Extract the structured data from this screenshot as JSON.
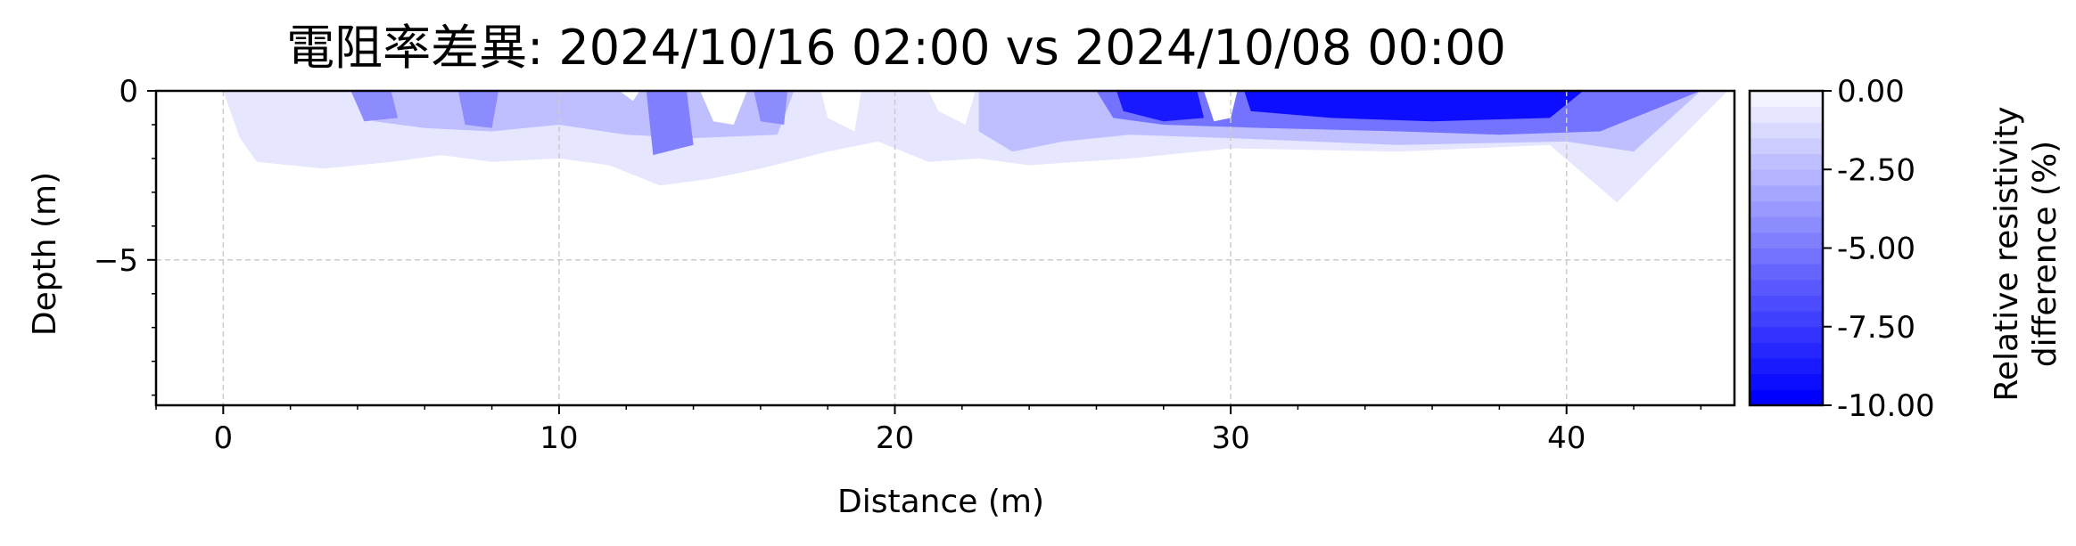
{
  "chart_data": {
    "type": "heatmap",
    "title": "電阻率差異: 2024/10/16 02:00 vs 2024/10/08 00:00",
    "xlabel": "Distance (m)",
    "ylabel": "Depth (m)",
    "xlim": [
      -2,
      45
    ],
    "ylim": [
      -9.3,
      0
    ],
    "x_ticks": [
      {
        "value": 0,
        "label": "0"
      },
      {
        "value": 10,
        "label": "10"
      },
      {
        "value": 20,
        "label": "20"
      },
      {
        "value": 30,
        "label": "30"
      },
      {
        "value": 40,
        "label": "40"
      }
    ],
    "y_ticks": [
      {
        "value": 0,
        "label": "0"
      },
      {
        "value": -5,
        "label": "−5"
      }
    ],
    "grid": true,
    "colorbar": {
      "label_line1": "Relative resistivity",
      "label_line2": "difference (%)",
      "range": [
        -10,
        0
      ],
      "levels": 20,
      "min_color": "#0000ff",
      "max_color": "#ffffff",
      "ticks": [
        {
          "value": 0,
          "label": "0.00"
        },
        {
          "value": -2.5,
          "label": "-2.50"
        },
        {
          "value": -5,
          "label": "-5.00"
        },
        {
          "value": -7.5,
          "label": "-7.50"
        },
        {
          "value": -10,
          "label": "-10.00"
        }
      ]
    },
    "regions": [
      {
        "name": "shallow-envelope",
        "value": -1.0,
        "points": [
          [
            0,
            0
          ],
          [
            44.8,
            0
          ],
          [
            41.5,
            -3.3
          ],
          [
            39.5,
            -1.6
          ],
          [
            35,
            -1.8
          ],
          [
            30,
            -1.7
          ],
          [
            27,
            -2.0
          ],
          [
            24,
            -2.2
          ],
          [
            22.5,
            -2.0
          ],
          [
            21,
            -2.1
          ],
          [
            19.5,
            -1.5
          ],
          [
            18,
            -1.8
          ],
          [
            16,
            -2.3
          ],
          [
            14.5,
            -2.6
          ],
          [
            13,
            -2.8
          ],
          [
            11.5,
            -2.2
          ],
          [
            10,
            -2.0
          ],
          [
            8,
            -2.1
          ],
          [
            6.5,
            -1.9
          ],
          [
            5,
            -2.1
          ],
          [
            3,
            -2.3
          ],
          [
            1,
            -2.1
          ],
          [
            0.5,
            -1.4
          ]
        ]
      },
      {
        "name": "band-2-5",
        "value": -2.5,
        "points": [
          [
            4,
            0
          ],
          [
            17,
            0
          ],
          [
            16.5,
            -1.3
          ],
          [
            14,
            -1.4
          ],
          [
            12,
            -1.3
          ],
          [
            10,
            -1.0
          ],
          [
            8,
            -1.2
          ],
          [
            6,
            -1.1
          ],
          [
            4.5,
            -0.9
          ]
        ]
      },
      {
        "name": "band-22-44",
        "value": -2.5,
        "points": [
          [
            22.5,
            0
          ],
          [
            44,
            0
          ],
          [
            42,
            -1.8
          ],
          [
            40,
            -1.5
          ],
          [
            35,
            -1.6
          ],
          [
            30,
            -1.4
          ],
          [
            27,
            -1.3
          ],
          [
            25,
            -1.5
          ],
          [
            23.5,
            -1.8
          ],
          [
            22.5,
            -1.2
          ]
        ]
      },
      {
        "name": "spot-4",
        "value": -4.5,
        "points": [
          [
            3.8,
            0
          ],
          [
            5.0,
            0
          ],
          [
            5.2,
            -0.8
          ],
          [
            4.2,
            -0.9
          ]
        ]
      },
      {
        "name": "spot-7",
        "value": -4.5,
        "points": [
          [
            7.0,
            0
          ],
          [
            8.2,
            0
          ],
          [
            8.0,
            -1.1
          ],
          [
            7.2,
            -1.0
          ]
        ]
      },
      {
        "name": "spot-13",
        "value": -5.0,
        "points": [
          [
            12.6,
            0
          ],
          [
            13.8,
            0
          ],
          [
            14.0,
            -1.6
          ],
          [
            12.8,
            -1.9
          ]
        ]
      },
      {
        "name": "spot-16",
        "value": -4.5,
        "points": [
          [
            15.8,
            0
          ],
          [
            16.8,
            0
          ],
          [
            16.7,
            -1.0
          ],
          [
            16.0,
            -0.9
          ]
        ]
      },
      {
        "name": "band-26-44",
        "value": -5.5,
        "points": [
          [
            26,
            0
          ],
          [
            44,
            0
          ],
          [
            41,
            -1.2
          ],
          [
            38,
            -1.3
          ],
          [
            35,
            -1.2
          ],
          [
            31,
            -1.1
          ],
          [
            28,
            -1.0
          ],
          [
            26.5,
            -0.8
          ]
        ]
      },
      {
        "name": "core-27-29",
        "value": -9.0,
        "points": [
          [
            26.6,
            0
          ],
          [
            29.0,
            0
          ],
          [
            29.2,
            -0.8
          ],
          [
            28.0,
            -0.9
          ],
          [
            26.8,
            -0.6
          ]
        ]
      },
      {
        "name": "core-30-40",
        "value": -9.5,
        "points": [
          [
            30.4,
            0
          ],
          [
            40.5,
            0
          ],
          [
            39.5,
            -0.8
          ],
          [
            36,
            -0.9
          ],
          [
            33,
            -0.8
          ],
          [
            30.6,
            -0.6
          ]
        ]
      },
      {
        "name": "hole-29-30",
        "value": 0,
        "points": [
          [
            29.2,
            0
          ],
          [
            30.2,
            0
          ],
          [
            30.0,
            -0.8
          ],
          [
            29.5,
            -0.9
          ]
        ]
      },
      {
        "name": "hole-11",
        "value": 0,
        "points": [
          [
            11.8,
            0
          ],
          [
            12.4,
            0
          ],
          [
            12.2,
            -0.3
          ]
        ]
      },
      {
        "name": "hole-14-16",
        "value": 0,
        "points": [
          [
            14.2,
            0
          ],
          [
            15.6,
            0
          ],
          [
            15.2,
            -1.0
          ],
          [
            14.6,
            -0.9
          ]
        ]
      },
      {
        "name": "hole-18-19",
        "value": 0,
        "points": [
          [
            17.8,
            0
          ],
          [
            19.0,
            0
          ],
          [
            18.8,
            -1.2
          ],
          [
            18.0,
            -0.8
          ]
        ]
      },
      {
        "name": "hole-21-22",
        "value": 0,
        "points": [
          [
            21.0,
            0
          ],
          [
            22.4,
            0
          ],
          [
            22.1,
            -1.0
          ],
          [
            21.3,
            -0.6
          ]
        ]
      }
    ]
  }
}
